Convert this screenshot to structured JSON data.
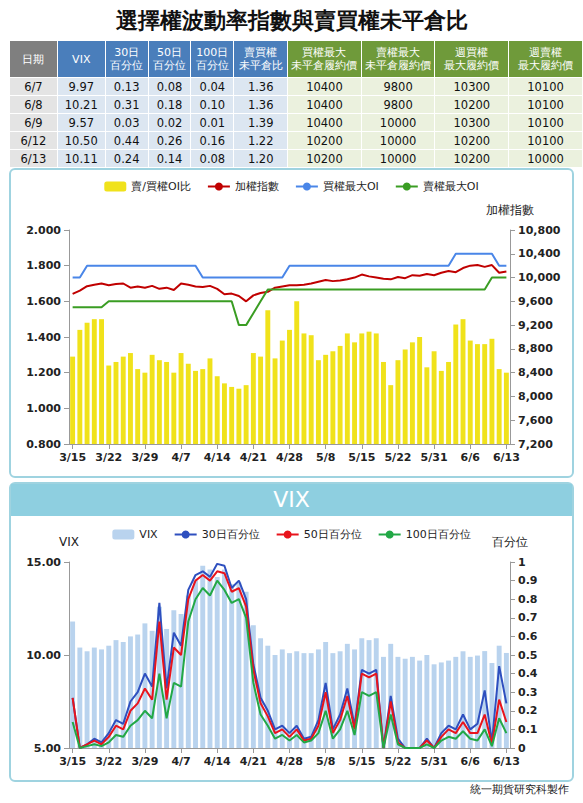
{
  "title": "選擇權波動率指數與賣買權未平倉比",
  "table": {
    "header": [
      [
        "日期"
      ],
      [
        "VIX"
      ],
      [
        "30日",
        "百分位"
      ],
      [
        "50日",
        "百分位"
      ],
      [
        "100日",
        "百分位"
      ],
      [
        "賣買權",
        "未平倉比"
      ],
      [
        "買權最大",
        "未平倉履約價"
      ],
      [
        "賣權最大",
        "未平倉履約價"
      ],
      [
        "週買權",
        "最大履約價"
      ],
      [
        "週賣權",
        "最大履約價"
      ]
    ],
    "rows": [
      [
        "6/7",
        "9.97",
        "0.13",
        "0.08",
        "0.04",
        "1.36",
        "10400",
        "9800",
        "10300",
        "10100"
      ],
      [
        "6/8",
        "10.21",
        "0.31",
        "0.18",
        "0.10",
        "1.36",
        "10400",
        "9800",
        "10200",
        "10100"
      ],
      [
        "6/9",
        "9.57",
        "0.03",
        "0.02",
        "0.01",
        "1.39",
        "10400",
        "10000",
        "10300",
        "10100"
      ],
      [
        "6/12",
        "10.50",
        "0.44",
        "0.26",
        "0.16",
        "1.22",
        "10200",
        "10000",
        "10200",
        "10100"
      ],
      [
        "6/13",
        "10.11",
        "0.24",
        "0.14",
        "0.08",
        "1.20",
        "10200",
        "10000",
        "10200",
        "10000"
      ]
    ]
  },
  "chart_data": [
    {
      "type": "bar",
      "categories": [
        "3/15",
        null,
        null,
        null,
        null,
        "3/22",
        null,
        null,
        null,
        null,
        "3/29",
        null,
        null,
        null,
        null,
        "4/7",
        null,
        null,
        null,
        null,
        "4/14",
        null,
        null,
        null,
        null,
        "4/21",
        null,
        null,
        null,
        null,
        "4/28",
        null,
        null,
        null,
        null,
        "5/8",
        null,
        null,
        null,
        null,
        "5/15",
        null,
        null,
        null,
        null,
        "5/22",
        null,
        null,
        null,
        null,
        "5/31",
        null,
        null,
        null,
        null,
        "6/6",
        null,
        null,
        null,
        null,
        "6/13"
      ],
      "series": [
        {
          "name": "賣/買權OI比",
          "type": "bar",
          "color": "#f0e21b",
          "values": [
            1.29,
            1.44,
            1.48,
            1.5,
            1.5,
            1.24,
            1.26,
            1.29,
            1.31,
            1.22,
            1.2,
            1.3,
            1.27,
            1.26,
            1.2,
            1.31,
            1.25,
            1.21,
            1.22,
            1.28,
            1.18,
            1.14,
            1.12,
            1.11,
            1.13,
            1.31,
            1.29,
            1.55,
            1.28,
            1.38,
            1.44,
            1.6,
            1.42,
            1.41,
            1.27,
            1.3,
            1.32,
            1.35,
            1.42,
            1.37,
            1.42,
            1.43,
            1.42,
            1.26,
            1.13,
            1.27,
            1.33,
            1.37,
            1.4,
            1.23,
            1.32,
            1.21,
            1.26,
            1.47,
            1.5,
            1.38,
            1.36,
            1.36,
            1.39,
            1.22,
            1.2
          ]
        },
        {
          "name": "加權指數",
          "type": "line",
          "color": "#c00000",
          "axis": "y2",
          "values": [
            9725,
            9780,
            9855,
            9880,
            9900,
            9870,
            9890,
            9900,
            9830,
            9850,
            9830,
            9860,
            9810,
            9830,
            9790,
            9900,
            9880,
            9850,
            9840,
            9860,
            9810,
            9720,
            9730,
            9690,
            9600,
            9700,
            9740,
            9760,
            9830,
            9850,
            9870,
            9870,
            9880,
            9900,
            9930,
            9960,
            9940,
            9950,
            9970,
            10000,
            10050,
            10020,
            10000,
            9980,
            9970,
            10010,
            9990,
            10040,
            10030,
            10060,
            10040,
            10080,
            10110,
            10090,
            10160,
            10200,
            10210,
            10180,
            10210,
            10080,
            10100
          ]
        },
        {
          "name": "買權最大OI",
          "type": "line",
          "color": "#4a86e8",
          "axis": "y2",
          "values": [
            10000,
            10000,
            10200,
            10200,
            10200,
            10200,
            10200,
            10200,
            10200,
            10200,
            10200,
            10200,
            10200,
            10200,
            10200,
            10200,
            10200,
            10200,
            10000,
            10000,
            10000,
            10000,
            10000,
            10000,
            10000,
            10000,
            10000,
            10000,
            10000,
            10000,
            10200,
            10200,
            10200,
            10200,
            10200,
            10200,
            10200,
            10200,
            10200,
            10200,
            10200,
            10200,
            10200,
            10200,
            10200,
            10200,
            10200,
            10200,
            10200,
            10200,
            10200,
            10200,
            10200,
            10400,
            10400,
            10400,
            10400,
            10400,
            10400,
            10200,
            10200
          ]
        },
        {
          "name": "賣權最大OI",
          "type": "line",
          "color": "#3a9d23",
          "axis": "y2",
          "values": [
            9500,
            9500,
            9500,
            9500,
            9500,
            9600,
            9600,
            9600,
            9600,
            9600,
            9600,
            9600,
            9600,
            9600,
            9600,
            9600,
            9600,
            9600,
            9600,
            9600,
            9600,
            9600,
            9600,
            9200,
            9200,
            9400,
            9600,
            9800,
            9800,
            9800,
            9800,
            9800,
            9800,
            9800,
            9800,
            9800,
            9800,
            9800,
            9800,
            9800,
            9800,
            9800,
            9800,
            9800,
            9800,
            9800,
            9800,
            9800,
            9800,
            9800,
            9800,
            9800,
            9800,
            9800,
            9800,
            9800,
            9800,
            9800,
            10000,
            10000,
            10000
          ]
        }
      ],
      "ylim": [
        0.8,
        2.0
      ],
      "yticks": [
        {
          "value": 0.8,
          "label": "0.800"
        },
        {
          "value": 1.0,
          "label": "1.000"
        },
        {
          "value": 1.2,
          "label": "1.200"
        },
        {
          "value": 1.4,
          "label": "1.400"
        },
        {
          "value": 1.6,
          "label": "1.600"
        },
        {
          "value": 1.8,
          "label": "1.800"
        },
        {
          "value": 2.0,
          "label": "2.000"
        }
      ],
      "y2label": "加權指數",
      "y2lim": [
        7200,
        10800
      ],
      "y2ticks": [
        {
          "value": 7200,
          "label": "7,200"
        },
        {
          "value": 7600,
          "label": "7,600"
        },
        {
          "value": 8000,
          "label": "8,000"
        },
        {
          "value": 8400,
          "label": "8,400"
        },
        {
          "value": 8800,
          "label": "8,800"
        },
        {
          "value": 9200,
          "label": "9,200"
        },
        {
          "value": 9600,
          "label": "9,600"
        },
        {
          "value": 10000,
          "label": "10,000"
        },
        {
          "value": 10400,
          "label": "10,400"
        },
        {
          "value": 10800,
          "label": "10,800"
        }
      ],
      "legend": "top",
      "grid": false
    },
    {
      "type": "bar",
      "title": "VIX",
      "categories": [
        "3/15",
        null,
        null,
        null,
        null,
        "3/22",
        null,
        null,
        null,
        null,
        "3/29",
        null,
        null,
        null,
        null,
        "4/7",
        null,
        null,
        null,
        null,
        "4/14",
        null,
        null,
        null,
        null,
        "4/21",
        null,
        null,
        null,
        null,
        "4/28",
        null,
        null,
        null,
        null,
        "5/8",
        null,
        null,
        null,
        null,
        "5/15",
        null,
        null,
        null,
        null,
        "5/22",
        null,
        null,
        null,
        null,
        "5/31",
        null,
        null,
        null,
        null,
        "6/6",
        null,
        null,
        null,
        null,
        "6/13"
      ],
      "series": [
        {
          "name": "VIX",
          "type": "bar",
          "color": "#b9d3ee",
          "values": [
            11.8,
            10.4,
            10.2,
            10.4,
            10.3,
            10.5,
            10.8,
            10.7,
            11.0,
            11.1,
            11.7,
            11.3,
            12.6,
            11.4,
            12.4,
            12.2,
            13.2,
            14.0,
            14.8,
            14.6,
            14.2,
            14.6,
            13.8,
            13.9,
            13.4,
            11.6,
            10.9,
            10.5,
            10.0,
            10.3,
            10.1,
            10.2,
            10.1,
            10.1,
            10.3,
            10.7,
            10.1,
            10.2,
            10.6,
            10.3,
            10.9,
            10.8,
            10.9,
            9.9,
            10.6,
            9.9,
            9.8,
            9.9,
            9.7,
            10.0,
            9.5,
            9.6,
            9.7,
            9.9,
            10.2,
            9.9,
            9.97,
            10.21,
            9.57,
            10.5,
            10.11
          ]
        },
        {
          "name": "30日百分位",
          "type": "line",
          "color": "#2e4fbf",
          "axis": "y2",
          "values": [
            0.27,
            0.0,
            0.02,
            0.05,
            0.03,
            0.08,
            0.15,
            0.13,
            0.25,
            0.3,
            0.4,
            0.33,
            0.78,
            0.32,
            0.62,
            0.55,
            0.85,
            0.93,
            0.95,
            0.92,
            0.99,
            0.98,
            0.86,
            0.9,
            0.8,
            0.45,
            0.27,
            0.2,
            0.1,
            0.12,
            0.08,
            0.12,
            0.05,
            0.06,
            0.15,
            0.35,
            0.1,
            0.18,
            0.32,
            0.12,
            0.42,
            0.4,
            0.42,
            0.0,
            0.28,
            0.05,
            0.0,
            0.0,
            0.0,
            0.05,
            0.0,
            0.08,
            0.12,
            0.1,
            0.18,
            0.1,
            0.13,
            0.31,
            0.03,
            0.44,
            0.24
          ]
        },
        {
          "name": "50日百分位",
          "type": "line",
          "color": "#e8141c",
          "axis": "y2",
          "values": [
            0.27,
            0.0,
            0.02,
            0.04,
            0.02,
            0.06,
            0.12,
            0.1,
            0.2,
            0.24,
            0.32,
            0.26,
            0.68,
            0.26,
            0.54,
            0.5,
            0.8,
            0.9,
            0.93,
            0.9,
            0.95,
            0.94,
            0.84,
            0.86,
            0.76,
            0.42,
            0.24,
            0.17,
            0.08,
            0.1,
            0.06,
            0.1,
            0.04,
            0.05,
            0.12,
            0.3,
            0.08,
            0.15,
            0.28,
            0.1,
            0.4,
            0.38,
            0.4,
            0.0,
            0.25,
            0.03,
            0.0,
            0.0,
            0.0,
            0.04,
            0.0,
            0.06,
            0.1,
            0.08,
            0.14,
            0.08,
            0.08,
            0.18,
            0.02,
            0.26,
            0.14
          ]
        },
        {
          "name": "100日百分位",
          "type": "line",
          "color": "#22a846",
          "axis": "y2",
          "values": [
            0.14,
            0.0,
            0.01,
            0.02,
            0.01,
            0.03,
            0.07,
            0.06,
            0.12,
            0.15,
            0.2,
            0.16,
            0.4,
            0.16,
            0.35,
            0.33,
            0.68,
            0.8,
            0.86,
            0.82,
            0.9,
            0.85,
            0.78,
            0.8,
            0.7,
            0.35,
            0.18,
            0.12,
            0.05,
            0.07,
            0.04,
            0.07,
            0.03,
            0.04,
            0.08,
            0.2,
            0.05,
            0.1,
            0.2,
            0.07,
            0.3,
            0.28,
            0.3,
            0.0,
            0.18,
            0.02,
            0.0,
            0.0,
            0.0,
            0.02,
            0.0,
            0.04,
            0.06,
            0.05,
            0.09,
            0.05,
            0.04,
            0.1,
            0.01,
            0.16,
            0.08
          ]
        }
      ],
      "ylabel": "VIX",
      "ylim": [
        5,
        15
      ],
      "yticks": [
        {
          "value": 5,
          "label": "5.00"
        },
        {
          "value": 10,
          "label": "10.00"
        },
        {
          "value": 15,
          "label": "15.00"
        }
      ],
      "y2label": "百分位",
      "y2lim": [
        0,
        1
      ],
      "y2ticks": [
        0,
        0.1,
        0.2,
        0.3,
        0.4,
        0.5,
        0.6,
        0.7,
        0.8,
        0.9,
        1
      ],
      "legend": "top",
      "grid": false
    }
  ],
  "footer": "統一期貨研究科製作"
}
